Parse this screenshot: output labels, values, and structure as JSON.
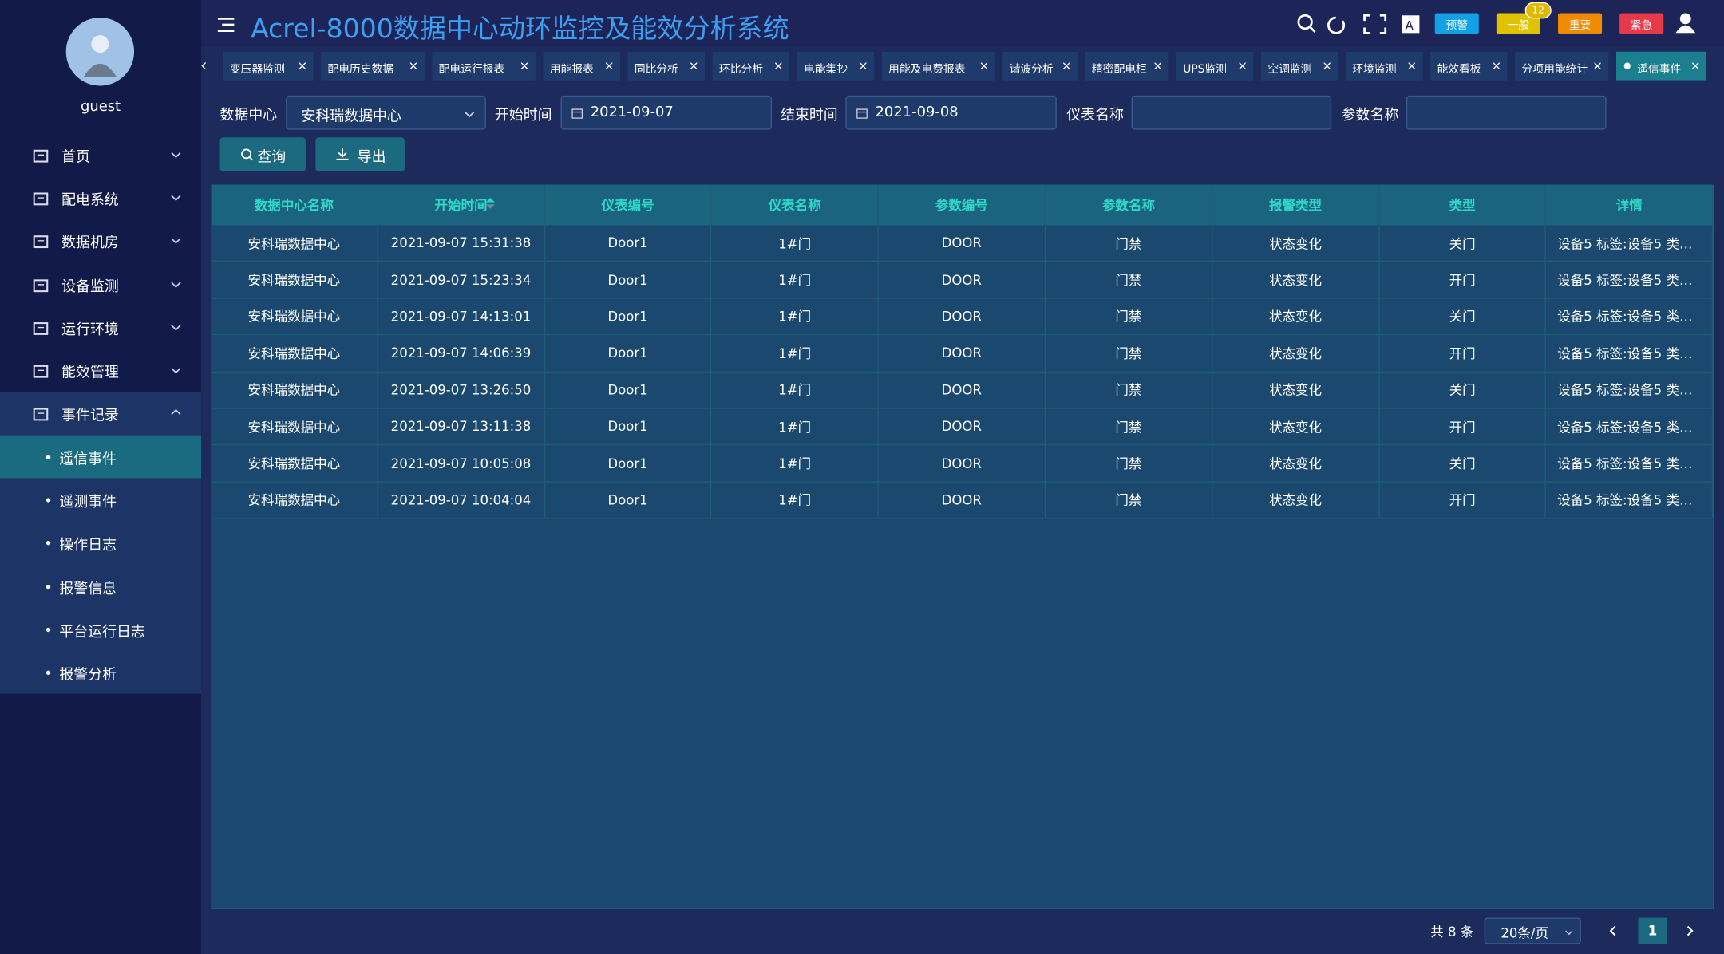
{
  "header": {
    "title": "Acrel-8000数据中心动环监控及能效分析系统",
    "badges": [
      "预警",
      "一般",
      "重要",
      "紧急"
    ],
    "badge_count": "12"
  },
  "sidebar": {
    "user": "guest",
    "menu": [
      "首页",
      "配电系统",
      "数据机房",
      "设备监测",
      "运行环境",
      "能效管理",
      "事件记录"
    ],
    "submenu": [
      "遥信事件",
      "遥测事件",
      "操作日志",
      "报警信息",
      "平台运行日志",
      "报警分析"
    ]
  },
  "tabs": [
    "变压器监测",
    "配电历史数据",
    "配电运行报表",
    "用能报表",
    "同比分析",
    "环比分析",
    "电能集抄",
    "用能及电费报表",
    "谐波分析",
    "精密配电柜",
    "UPS监测",
    "空调监测",
    "环境监测",
    "能效看板",
    "分项用能统计",
    "遥信事件"
  ],
  "filters": {
    "labels": [
      "数据中心",
      "开始时间",
      "结束时间",
      "仪表名称",
      "参数名称"
    ],
    "data_center": "安科瑞数据中心",
    "start": "2021-09-07",
    "end": "2021-09-08",
    "buttons": [
      "查询",
      "导出"
    ]
  },
  "table": {
    "columns": [
      "数据中心名称",
      "开始时间",
      "仪表编号",
      "仪表名称",
      "参数编号",
      "参数名称",
      "报警类型",
      "类型",
      "详情"
    ],
    "rows": [
      [
        "安科瑞数据中心",
        "2021-09-07 15:31:38",
        "Door1",
        "1#门",
        "DOOR",
        "门禁",
        "状态变化",
        "关门",
        "设备5 标签:设备5 类…"
      ],
      [
        "安科瑞数据中心",
        "2021-09-07 15:23:34",
        "Door1",
        "1#门",
        "DOOR",
        "门禁",
        "状态变化",
        "开门",
        "设备5 标签:设备5 类…"
      ],
      [
        "安科瑞数据中心",
        "2021-09-07 14:13:01",
        "Door1",
        "1#门",
        "DOOR",
        "门禁",
        "状态变化",
        "关门",
        "设备5 标签:设备5 类…"
      ],
      [
        "安科瑞数据中心",
        "2021-09-07 14:06:39",
        "Door1",
        "1#门",
        "DOOR",
        "门禁",
        "状态变化",
        "开门",
        "设备5 标签:设备5 类…"
      ],
      [
        "安科瑞数据中心",
        "2021-09-07 13:26:50",
        "Door1",
        "1#门",
        "DOOR",
        "门禁",
        "状态变化",
        "关门",
        "设备5 标签:设备5 类…"
      ],
      [
        "安科瑞数据中心",
        "2021-09-07 13:11:38",
        "Door1",
        "1#门",
        "DOOR",
        "门禁",
        "状态变化",
        "开门",
        "设备5 标签:设备5 类…"
      ],
      [
        "安科瑞数据中心",
        "2021-09-07 10:05:08",
        "Door1",
        "1#门",
        "DOOR",
        "门禁",
        "状态变化",
        "关门",
        "设备5 标签:设备5 类…"
      ],
      [
        "安科瑞数据中心",
        "2021-09-07 10:04:04",
        "Door1",
        "1#门",
        "DOOR",
        "门禁",
        "状态变化",
        "开门",
        "设备5 标签:设备5 类…"
      ]
    ]
  },
  "pagination": {
    "total": "共 8 条",
    "page_size": "20条/页",
    "page": "1"
  }
}
